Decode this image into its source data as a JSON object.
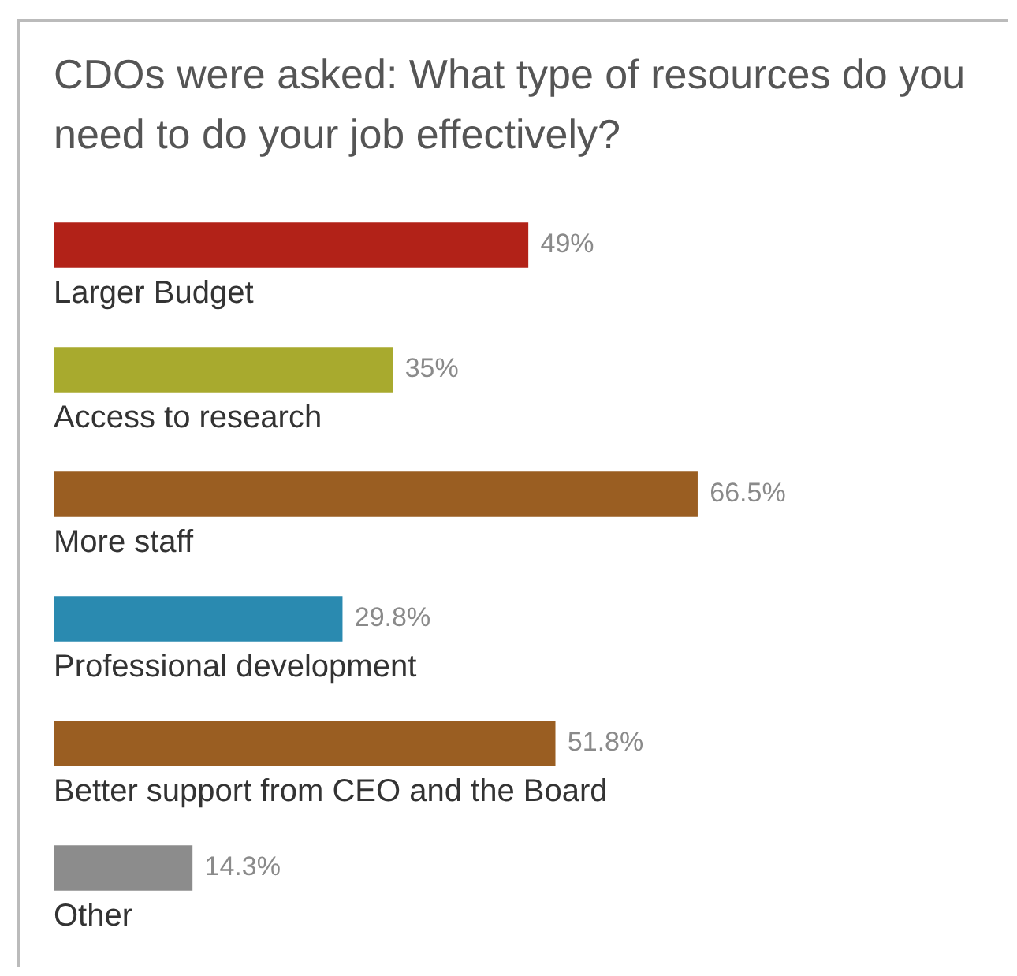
{
  "chart_data": {
    "type": "bar",
    "orientation": "horizontal",
    "title": "CDOs were asked: What type of resources do you need to do your job effectively?",
    "categories": [
      "Larger Budget",
      "Access to research",
      "More staff",
      "Professional development",
      "Better support from CEO and the Board",
      "Other"
    ],
    "values": [
      49,
      35,
      66.5,
      29.8,
      51.8,
      14.3
    ],
    "colors": [
      "#b22218",
      "#a8aa2e",
      "#9a5e22",
      "#2a8ab0",
      "#9a5e22",
      "#8c8c8c"
    ],
    "value_labels": [
      "49%",
      "35%",
      "66.5%",
      "29.8%",
      "51.8%",
      "14.3%"
    ]
  }
}
